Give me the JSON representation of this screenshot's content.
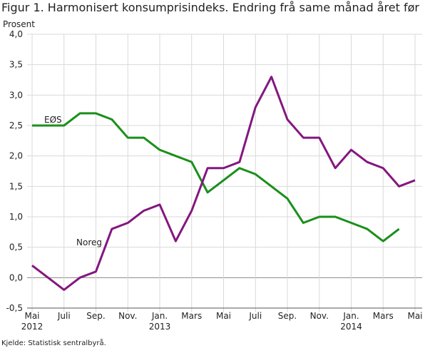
{
  "chart_data": {
    "type": "line",
    "title": "Figur 1. Harmonisert konsumprisindeks. Endring frå same månad året før",
    "y_label": "Prosent",
    "source": "Kjelde: Statistisk sentralbyrå.",
    "categories": [
      "Mai\n2012",
      null,
      "Juli",
      null,
      "Sep.",
      null,
      "Nov.",
      null,
      "Jan.\n2013",
      null,
      "Mars",
      null,
      "Mai",
      null,
      "Juli",
      null,
      "Sep.",
      null,
      "Nov.",
      null,
      "Jan.\n2014",
      null,
      "Mars",
      null,
      "Mai"
    ],
    "series": [
      {
        "name": "EØS",
        "color": "#1a8f1a",
        "values": [
          2.5,
          2.5,
          2.5,
          2.7,
          2.7,
          2.6,
          2.3,
          2.3,
          2.1,
          2.0,
          1.9,
          1.4,
          1.6,
          1.8,
          1.7,
          1.5,
          1.3,
          0.9,
          1.0,
          1.0,
          0.9,
          0.8,
          0.6,
          0.8,
          null
        ]
      },
      {
        "name": "Noreg",
        "color": "#83177f",
        "values": [
          0.2,
          0.0,
          -0.2,
          0.0,
          0.1,
          0.8,
          0.9,
          1.1,
          1.2,
          0.6,
          1.1,
          1.8,
          1.8,
          1.9,
          2.8,
          3.3,
          2.6,
          2.3,
          2.3,
          1.8,
          2.1,
          1.9,
          1.8,
          1.5,
          1.6
        ]
      }
    ],
    "ylim": [
      -0.5,
      4.0
    ],
    "yticks": [
      {
        "value": -0.5,
        "label": "-0,5"
      },
      {
        "value": 0,
        "label": "0,0"
      },
      {
        "value": 0.5,
        "label": "0,5"
      },
      {
        "value": 1.0,
        "label": "1,0"
      },
      {
        "value": 1.5,
        "label": "1,5"
      },
      {
        "value": 2.0,
        "label": "2,0"
      },
      {
        "value": 2.5,
        "label": "2,5"
      },
      {
        "value": 3.0,
        "label": "3,0"
      },
      {
        "value": 3.5,
        "label": "3,5"
      },
      {
        "value": 4.0,
        "label": "4,0"
      }
    ],
    "grid": true
  }
}
